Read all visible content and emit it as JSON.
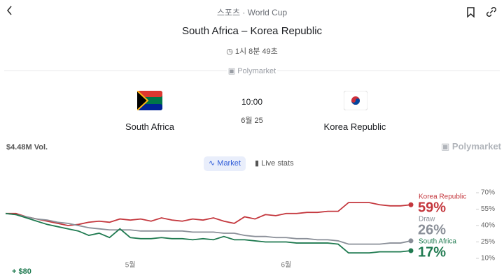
{
  "header": {
    "breadcrumb_section": "스포츠",
    "breadcrumb_separator": "·",
    "breadcrumb_page": "World Cup"
  },
  "match": {
    "title": "South Africa – Korea Republic",
    "countdown": "1시 8분 49초",
    "source": "Polymarket",
    "home_team": "South Africa",
    "away_team": "Korea Republic",
    "time": "10:00",
    "date": "6월 25"
  },
  "volume": "$4.48M Vol.",
  "watermark": "Polymarket",
  "tabs": [
    "Market",
    "Live stats"
  ],
  "footer": "+ $80",
  "chart_data": {
    "type": "line",
    "categories": [
      null,
      null,
      null,
      null,
      null,
      null,
      null,
      null,
      null,
      null,
      null,
      null,
      "5월",
      null,
      null,
      null,
      null,
      null,
      null,
      null,
      null,
      null,
      null,
      null,
      null,
      null,
      null,
      "6월",
      null,
      null,
      null,
      null,
      null,
      null,
      null,
      null,
      null,
      null,
      null,
      null
    ],
    "series": [
      {
        "name": "Korea Republic",
        "color": "#c4373d",
        "current_label": "59%",
        "values": [
          51,
          51,
          48,
          46,
          44,
          42,
          40,
          41,
          43,
          44,
          43,
          46,
          45,
          46,
          44,
          47,
          45,
          44,
          46,
          45,
          47,
          44,
          42,
          48,
          46,
          50,
          49,
          51,
          51,
          52,
          52,
          53,
          53,
          61,
          61,
          61,
          59,
          58,
          58,
          59
        ]
      },
      {
        "name": "Draw",
        "color": "#8a8f98",
        "current_label": "26%",
        "values": [
          51,
          50,
          48,
          46,
          45,
          43,
          42,
          40,
          38,
          37,
          36,
          36,
          36,
          35,
          35,
          35,
          35,
          35,
          34,
          34,
          34,
          33,
          33,
          31,
          30,
          30,
          29,
          29,
          28,
          28,
          27,
          27,
          26,
          23,
          23,
          23,
          23,
          24,
          24,
          26
        ]
      },
      {
        "name": "South Africa",
        "color": "#1f7a50",
        "current_label": "17%",
        "values": [
          51,
          50,
          47,
          44,
          41,
          39,
          37,
          35,
          31,
          33,
          29,
          37,
          29,
          28,
          28,
          29,
          28,
          28,
          27,
          28,
          27,
          30,
          27,
          27,
          26,
          25,
          25,
          25,
          24,
          24,
          24,
          24,
          23,
          15,
          15,
          15,
          16,
          16,
          16,
          17
        ]
      }
    ],
    "ylim": [
      10,
      70
    ],
    "yticks": [
      {
        "value": 70,
        "label": "70%"
      },
      {
        "value": 55,
        "label": "55%"
      },
      {
        "value": 40,
        "label": "40%"
      },
      {
        "value": 25,
        "label": "25%"
      },
      {
        "value": 10,
        "label": "10%"
      }
    ]
  }
}
